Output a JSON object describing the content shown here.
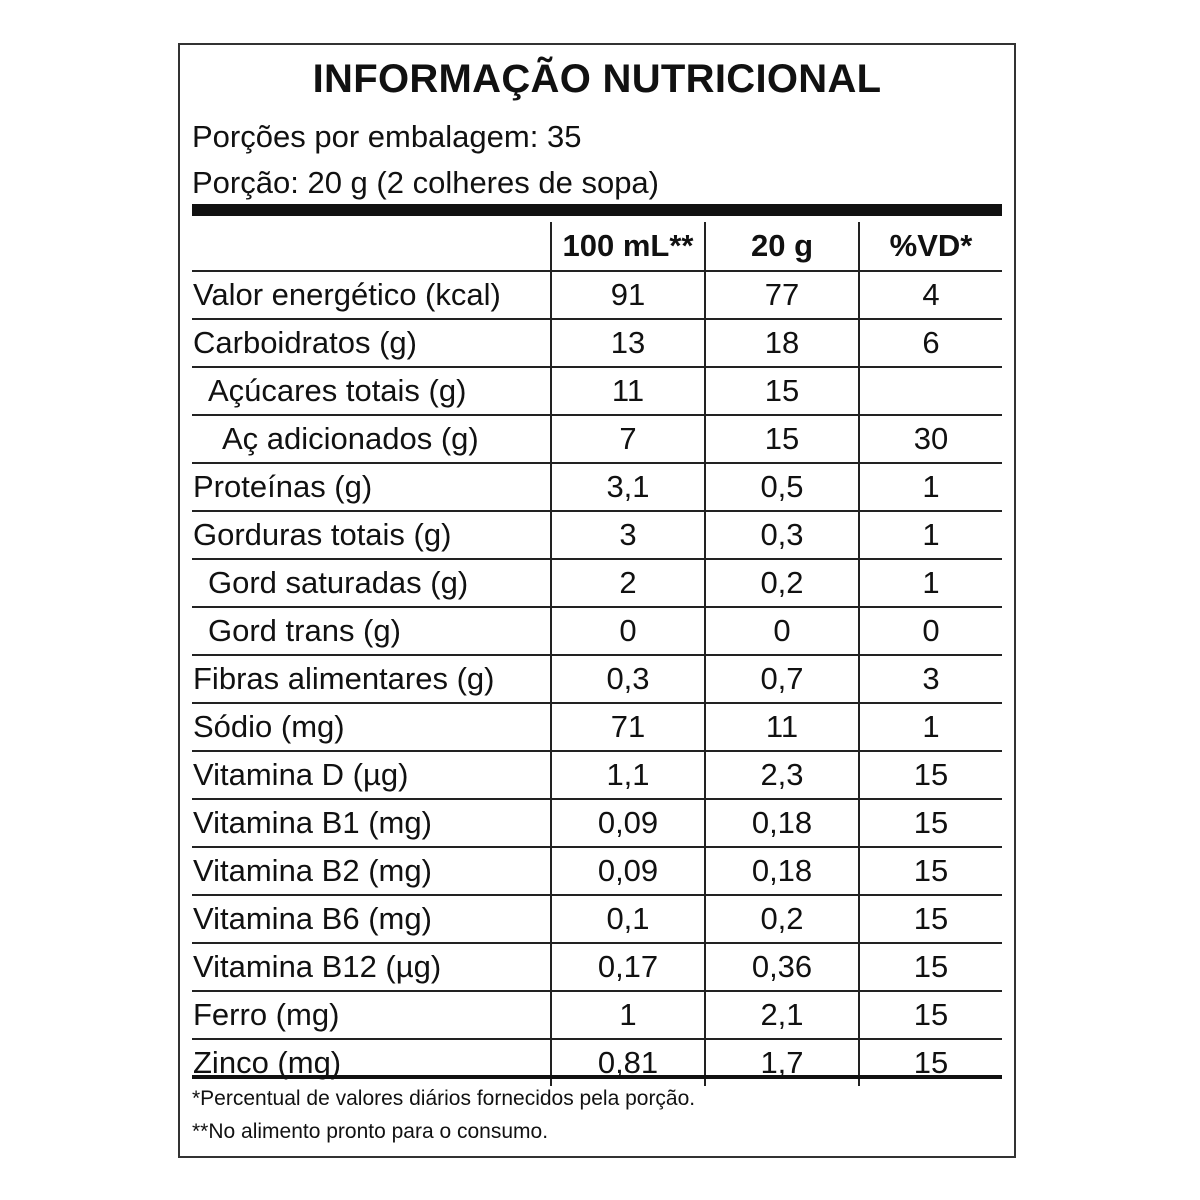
{
  "title": "INFORMAÇÃO NUTRICIONAL",
  "servings_per_package": "Porções por embalagem: 35",
  "serving_size": "Porção: 20 g (2 colheres de sopa)",
  "columns": [
    "",
    "100 mL**",
    "20 g",
    "%VD*"
  ],
  "rows": [
    {
      "name": "Valor energético (kcal)",
      "indent": 0,
      "v100": "91",
      "v20": "77",
      "vd": "4"
    },
    {
      "name": "Carboidratos (g)",
      "indent": 0,
      "v100": "13",
      "v20": "18",
      "vd": "6"
    },
    {
      "name": "Açúcares totais (g)",
      "indent": 1,
      "v100": "11",
      "v20": "15",
      "vd": ""
    },
    {
      "name": "Aç adicionados (g)",
      "indent": 2,
      "v100": "7",
      "v20": "15",
      "vd": "30"
    },
    {
      "name": "Proteínas (g)",
      "indent": 0,
      "v100": "3,1",
      "v20": "0,5",
      "vd": "1"
    },
    {
      "name": "Gorduras totais (g)",
      "indent": 0,
      "v100": "3",
      "v20": "0,3",
      "vd": "1"
    },
    {
      "name": "Gord saturadas (g)",
      "indent": 1,
      "v100": "2",
      "v20": "0,2",
      "vd": "1"
    },
    {
      "name": "Gord trans (g)",
      "indent": 1,
      "v100": "0",
      "v20": "0",
      "vd": "0"
    },
    {
      "name": "Fibras alimentares (g)",
      "indent": 0,
      "v100": "0,3",
      "v20": "0,7",
      "vd": "3"
    },
    {
      "name": "Sódio (mg)",
      "indent": 0,
      "v100": "71",
      "v20": "11",
      "vd": "1"
    },
    {
      "name": "Vitamina D (µg)",
      "indent": 0,
      "v100": "1,1",
      "v20": "2,3",
      "vd": "15"
    },
    {
      "name": "Vitamina B1 (mg)",
      "indent": 0,
      "v100": "0,09",
      "v20": "0,18",
      "vd": "15"
    },
    {
      "name": "Vitamina B2 (mg)",
      "indent": 0,
      "v100": "0,09",
      "v20": "0,18",
      "vd": "15"
    },
    {
      "name": "Vitamina B6 (mg)",
      "indent": 0,
      "v100": "0,1",
      "v20": "0,2",
      "vd": "15"
    },
    {
      "name": "Vitamina B12 (µg)",
      "indent": 0,
      "v100": "0,17",
      "v20": "0,36",
      "vd": "15"
    },
    {
      "name": "Ferro (mg)",
      "indent": 0,
      "v100": "1",
      "v20": "2,1",
      "vd": "15"
    },
    {
      "name": "Zinco (mg)",
      "indent": 0,
      "v100": "0,81",
      "v20": "1,7",
      "vd": "15"
    }
  ],
  "footnotes": [
    "*Percentual de valores diários fornecidos pela porção.",
    "**No alimento pronto para o consumo."
  ]
}
